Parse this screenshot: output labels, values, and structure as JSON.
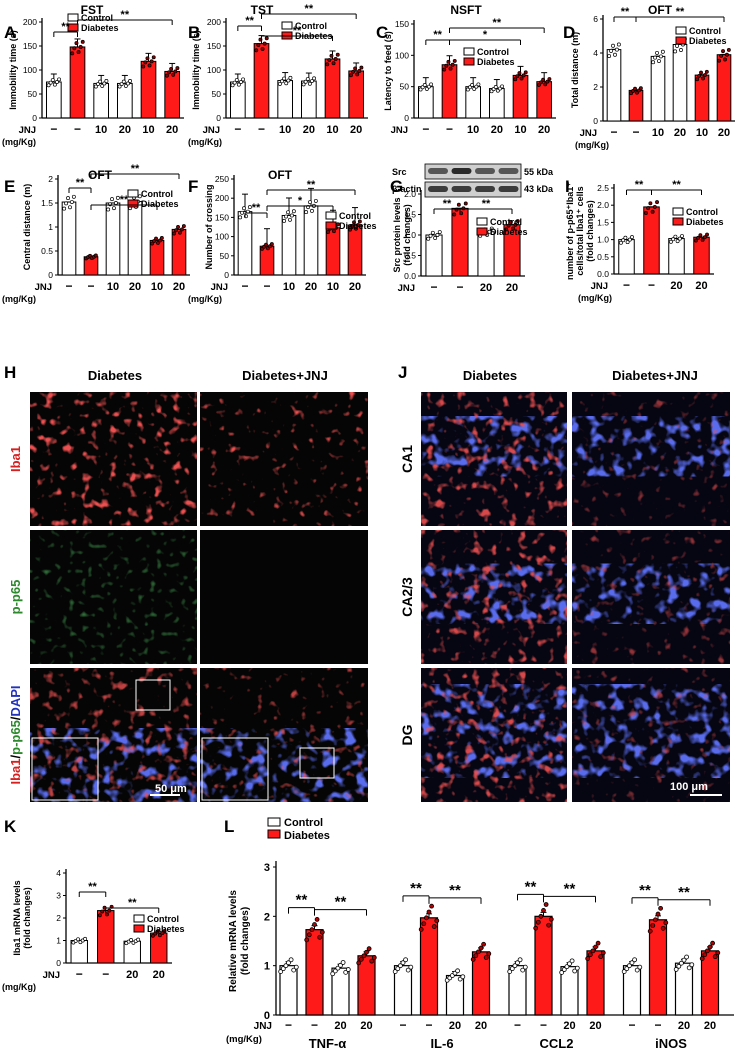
{
  "panels": {
    "A": {
      "letter": "A",
      "title": "FST",
      "ylabel": "Immobility time (s)",
      "yticks": [
        0,
        50,
        100,
        150,
        200
      ],
      "ymax": 200
    },
    "B": {
      "letter": "B",
      "title": "TST",
      "ylabel": "Immobility time (s)",
      "yticks": [
        0,
        50,
        100,
        150,
        200
      ],
      "ymax": 200
    },
    "C": {
      "letter": "C",
      "title": "NSFT",
      "ylabel": "Latency  to feed (s)",
      "yticks": [
        0,
        50,
        100,
        150
      ],
      "ymax": 150
    },
    "D": {
      "letter": "D",
      "title": "OFT",
      "ylabel": "Total distance (m)",
      "yticks": [
        0,
        2,
        4,
        6
      ],
      "ymax": 6
    },
    "E": {
      "letter": "E",
      "title": "OFT",
      "ylabel": "Central distance (m)",
      "yticks": [
        0.0,
        0.5,
        1.0,
        1.5,
        2.0
      ],
      "ymax": 2
    },
    "F": {
      "letter": "F",
      "title": "OFT",
      "ylabel": "Number of crossing",
      "yticks": [
        0,
        50,
        100,
        150,
        200,
        250
      ],
      "ymax": 250
    },
    "G": {
      "letter": "G",
      "title": "",
      "ylabel": "Src protein levels (fold changes)",
      "yticks": [
        0.0,
        0.5,
        1.0,
        1.5,
        2.0
      ],
      "ymax": 2
    },
    "I": {
      "letter": "I",
      "title": "",
      "ylabel": "number of p-p65⁺Iba1⁺ cells/total Iba1⁺ cells (fold changes)",
      "yticks": [
        0.0,
        0.5,
        1.0,
        1.5,
        2.0,
        2.5
      ],
      "ymax": 2.5
    },
    "H": {
      "letter": "H"
    },
    "J": {
      "letter": "J"
    },
    "K": {
      "letter": "K",
      "title": "",
      "ylabel": "Iba1 mRNA levels (fold changes)",
      "yticks": [
        0,
        1,
        2,
        3,
        4
      ],
      "ymax": 4
    },
    "L": {
      "letter": "L",
      "ylabel": "Relative mRNA levels (fold changes)",
      "yticks": [
        0,
        1,
        2,
        3
      ],
      "ymax": 3
    }
  },
  "legend": {
    "control": "Control",
    "diabetes": "Diabetes"
  },
  "jnj": {
    "label": "JNJ",
    "unit": "(mg/Kg)",
    "dash": "−",
    "d10": "10",
    "d20": "20"
  },
  "sig": {
    "double": "**",
    "single": "*"
  },
  "blot": {
    "src": "Src",
    "src_kda": "55 kDa",
    "actin": "β-actin",
    "actin_kda": "43 kDa"
  },
  "micro": {
    "H_cols": [
      "Diabetes",
      "Diabetes+JNJ"
    ],
    "H_rows": [
      "Iba1",
      "p-p65",
      "Iba1/p-p65/DAPI"
    ],
    "H_scale": "50 μm",
    "J_cols": [
      "Diabetes",
      "Diabetes+JNJ"
    ],
    "J_rows": [
      "CA1",
      "CA2/3",
      "DG"
    ],
    "J_scale": "100 μm"
  },
  "L_groups": [
    "TNF-α",
    "IL-6",
    "CCL2",
    "iNOS"
  ],
  "colors": {
    "control": "#ffffff",
    "diabetes": "#ff1a1a",
    "axis": "#000000",
    "iba1": "#d81f1f",
    "pp65": "#2c8a2c",
    "dapi": "#2233bb"
  },
  "chart_data": [
    {
      "panel": "A",
      "type": "bar",
      "categories": [
        "Control",
        "Diabetes",
        "Control+JNJ10",
        "Control+JNJ20",
        "Diabetes+JNJ10",
        "Diabetes+JNJ20"
      ],
      "values": [
        75,
        148,
        72,
        72,
        118,
        97
      ],
      "ylim": [
        0,
        200
      ],
      "ylabel": "Immobility time (s)",
      "title": "FST"
    },
    {
      "panel": "B",
      "type": "bar",
      "categories": [
        "Control",
        "Diabetes",
        "Control+JNJ10",
        "Control+JNJ20",
        "Diabetes+JNJ10",
        "Diabetes+JNJ20"
      ],
      "values": [
        75,
        155,
        78,
        77,
        123,
        98
      ],
      "ylim": [
        0,
        200
      ],
      "ylabel": "Immobility time (s)",
      "title": "TST"
    },
    {
      "panel": "C",
      "type": "bar",
      "categories": [
        "Control",
        "Diabetes",
        "Control+JNJ10",
        "Control+JNJ20",
        "Diabetes+JNJ10",
        "Diabetes+JNJ20"
      ],
      "values": [
        50,
        85,
        50,
        47,
        68,
        58
      ],
      "ylim": [
        0,
        150
      ],
      "ylabel": "Latency  to feed (s)",
      "title": "NSFT"
    },
    {
      "panel": "D",
      "type": "bar",
      "categories": [
        "Control",
        "Diabetes",
        "Control+JNJ10",
        "Control+JNJ20",
        "Diabetes+JNJ10",
        "Diabetes+JNJ20"
      ],
      "values": [
        4.2,
        1.8,
        3.8,
        4.5,
        2.7,
        3.9
      ],
      "ylim": [
        0,
        6
      ],
      "ylabel": "Total distance (m)",
      "title": "OFT"
    },
    {
      "panel": "E",
      "type": "bar",
      "categories": [
        "Control",
        "Diabetes",
        "Control+JNJ10",
        "Control+JNJ20",
        "Diabetes+JNJ10",
        "Diabetes+JNJ20"
      ],
      "values": [
        1.52,
        0.38,
        1.5,
        1.53,
        0.72,
        0.95
      ],
      "ylim": [
        0,
        2
      ],
      "ylabel": "Central distance (m)",
      "title": "OFT"
    },
    {
      "panel": "F",
      "type": "bar",
      "categories": [
        "Control",
        "Diabetes",
        "Control+JNJ10",
        "Control+JNJ20",
        "Diabetes+JNJ10",
        "Diabetes+JNJ20"
      ],
      "values": [
        165,
        75,
        155,
        180,
        123,
        130
      ],
      "ylim": [
        0,
        250
      ],
      "ylabel": "Number of crossing",
      "title": "OFT"
    },
    {
      "panel": "G",
      "type": "bar",
      "categories": [
        "Control",
        "Diabetes",
        "Control+JNJ20",
        "Diabetes+JNJ20"
      ],
      "values": [
        1.0,
        1.65,
        1.08,
        1.25
      ],
      "ylim": [
        0,
        2
      ],
      "ylabel": "Src protein levels (fold changes)"
    },
    {
      "panel": "I",
      "type": "bar",
      "categories": [
        "Control",
        "Diabetes",
        "Control+JNJ20",
        "Diabetes+JNJ20"
      ],
      "values": [
        1.0,
        1.95,
        1.03,
        1.07
      ],
      "ylim": [
        0,
        2.5
      ],
      "ylabel": "number of p-p65⁺Iba1⁺ cells/total Iba1⁺ cells (fold changes)"
    },
    {
      "panel": "K",
      "type": "bar",
      "categories": [
        "Control",
        "Diabetes",
        "Control+JNJ20",
        "Diabetes+JNJ20"
      ],
      "values": [
        1.0,
        2.33,
        0.97,
        1.33
      ],
      "ylim": [
        0,
        4
      ],
      "ylabel": "Iba1 mRNA levels (fold changes)"
    },
    {
      "panel": "L",
      "type": "bar",
      "categories": [
        "TNF-α",
        "IL-6",
        "CCL2",
        "iNOS"
      ],
      "ylim": [
        0,
        3
      ],
      "ylabel": "Relative mRNA levels (fold changes)",
      "series": [
        {
          "name": "Control",
          "values": [
            1.0,
            1.0,
            1.0,
            1.0
          ]
        },
        {
          "name": "Diabetes",
          "values": [
            1.73,
            1.97,
            2.0,
            1.93
          ]
        },
        {
          "name": "Control+JNJ20",
          "values": [
            0.95,
            0.8,
            0.98,
            1.05
          ]
        },
        {
          "name": "Diabetes+JNJ20",
          "values": [
            1.2,
            1.28,
            1.3,
            1.3
          ]
        }
      ]
    }
  ]
}
